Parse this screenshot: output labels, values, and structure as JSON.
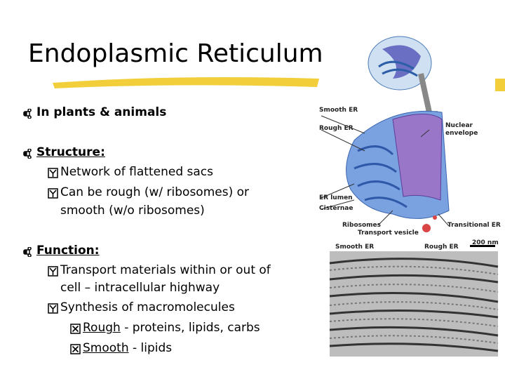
{
  "title": "Endoplasmic Reticulum",
  "bullets": [
    {
      "level": 1,
      "lines": [
        "In plants & animals"
      ]
    },
    {
      "level": 1,
      "term": "Structure:"
    },
    {
      "level": 2,
      "lines": [
        "Network of flattened sacs"
      ]
    },
    {
      "level": 2,
      "lines": [
        "Can be rough (w/ ribosomes) or",
        "smooth (w/o ribosomes)"
      ]
    },
    {
      "level": 1,
      "term": "Function:"
    },
    {
      "level": 2,
      "lines": [
        "Transport materials within or out of",
        "cell – intracellular highway"
      ]
    },
    {
      "level": 2,
      "lines": [
        "Synthesis of macromolecules"
      ]
    },
    {
      "level": 3,
      "term": "Rough",
      "lines": [
        " - proteins, lipids, carbs"
      ]
    },
    {
      "level": 3,
      "term": "Smooth",
      "lines": [
        " - lipids"
      ]
    }
  ],
  "figure": {
    "labels": [
      "Smooth ER",
      "Rough ER",
      "Nuclear envelope",
      "ER lumen",
      "Cisternae",
      "Ribosomes",
      "Transport vesicle",
      "Transitional ER",
      "Smooth ER",
      "Rough ER",
      "200 nm"
    ]
  }
}
